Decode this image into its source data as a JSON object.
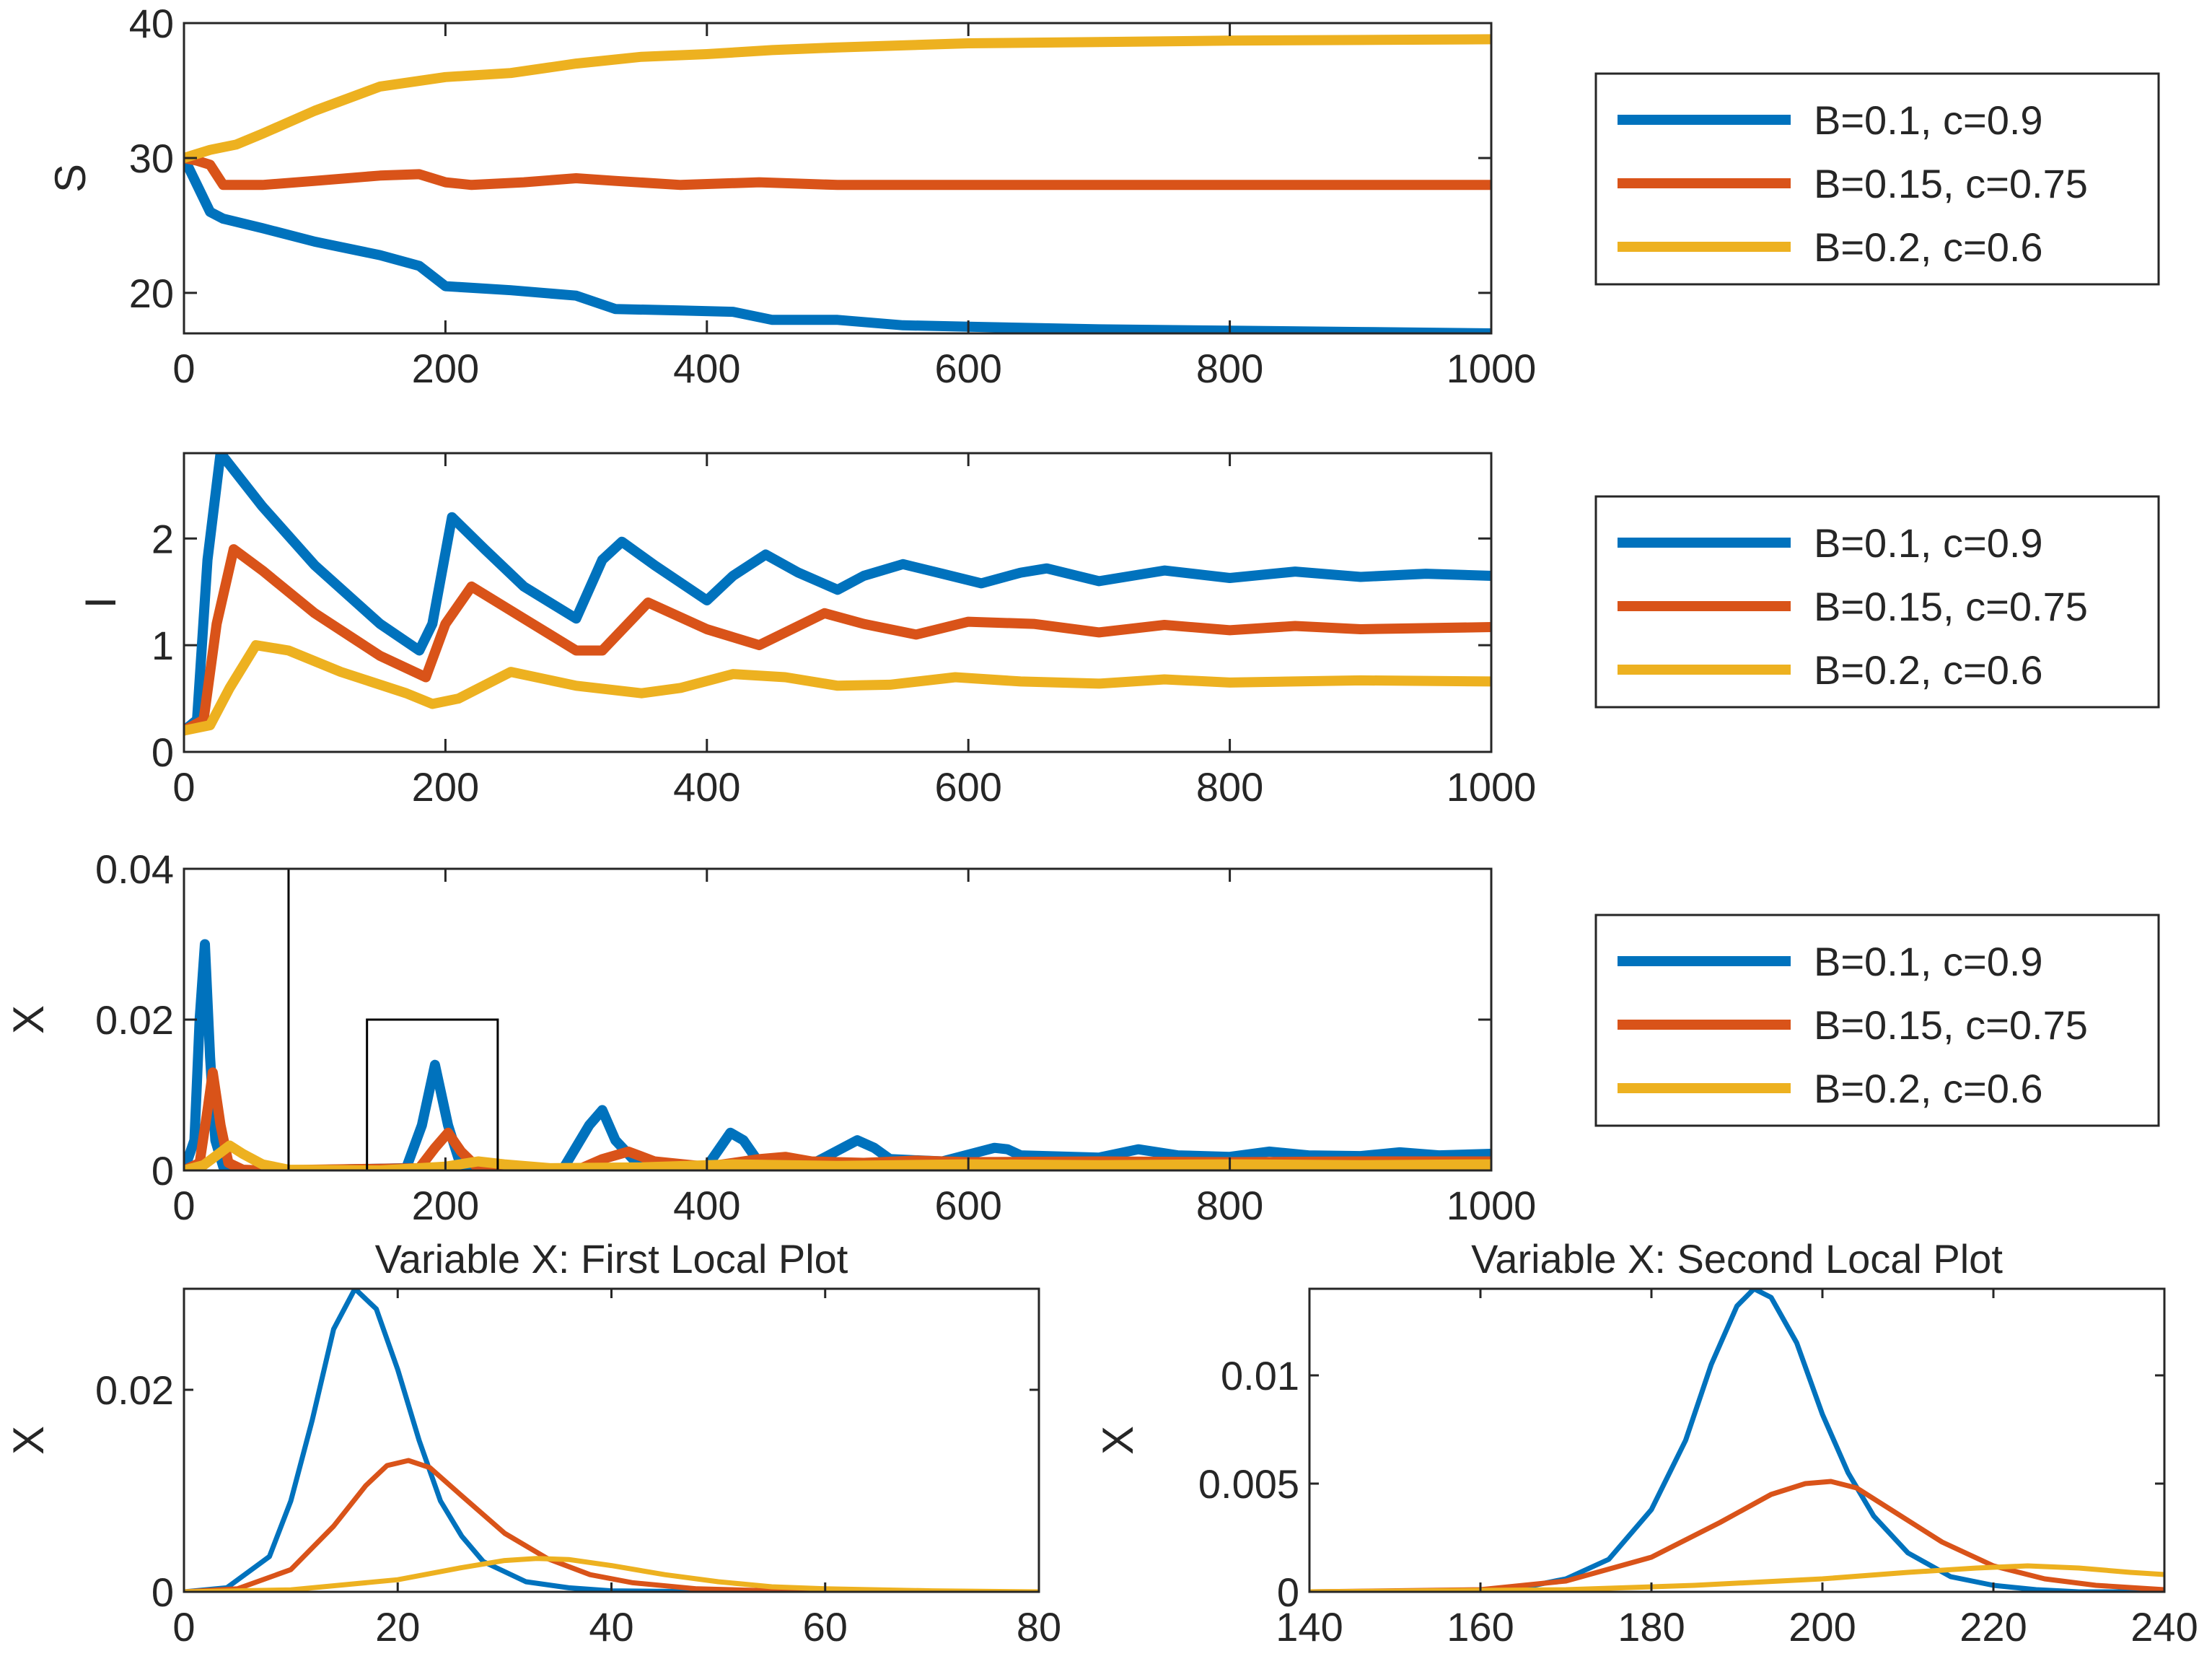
{
  "figure": {
    "colors": {
      "blue": "#0072BD",
      "orange": "#D95319",
      "yellow": "#EDB120",
      "axis": "#262626"
    }
  },
  "chart_data": [
    {
      "id": "S",
      "type": "line",
      "title": "",
      "xlabel": "",
      "ylabel": "S",
      "xlim": [
        0,
        1000
      ],
      "ylim": [
        17,
        40
      ],
      "xticks": [
        0,
        200,
        400,
        600,
        800,
        1000
      ],
      "yticks": [
        20,
        30,
        40
      ],
      "grid": false,
      "legend_position": "right",
      "series": [
        {
          "name": "B=0.1, c=0.9",
          "color": "#0072BD",
          "x": [
            0,
            10,
            20,
            30,
            60,
            100,
            150,
            180,
            200,
            250,
            300,
            330,
            380,
            420,
            450,
            500,
            550,
            600,
            700,
            800,
            900,
            1000
          ],
          "y": [
            30,
            28,
            26,
            25.5,
            24.8,
            23.8,
            22.8,
            22,
            20.5,
            20.2,
            19.8,
            18.8,
            18.7,
            18.6,
            18,
            18,
            17.6,
            17.5,
            17.3,
            17.2,
            17.1,
            17
          ]
        },
        {
          "name": "B=0.15, c=0.75",
          "color": "#D95319",
          "x": [
            0,
            10,
            20,
            30,
            60,
            100,
            150,
            180,
            200,
            220,
            260,
            300,
            330,
            380,
            440,
            500,
            600,
            700,
            800,
            900,
            1000
          ],
          "y": [
            30,
            29.8,
            29.5,
            28,
            28,
            28.3,
            28.7,
            28.8,
            28.2,
            28,
            28.2,
            28.5,
            28.3,
            28,
            28.2,
            28,
            28,
            28,
            28,
            28,
            28
          ]
        },
        {
          "name": "B=0.2, c=0.6",
          "color": "#EDB120",
          "x": [
            0,
            10,
            20,
            40,
            60,
            100,
            150,
            200,
            250,
            300,
            350,
            400,
            450,
            500,
            600,
            700,
            800,
            900,
            1000
          ],
          "y": [
            30,
            30.3,
            30.6,
            31,
            31.8,
            33.5,
            35.3,
            36,
            36.3,
            37,
            37.5,
            37.7,
            38,
            38.2,
            38.5,
            38.6,
            38.7,
            38.75,
            38.8
          ]
        }
      ]
    },
    {
      "id": "I",
      "type": "line",
      "title": "",
      "xlabel": "",
      "ylabel": "I",
      "xlim": [
        0,
        1000
      ],
      "ylim": [
        0,
        2.8
      ],
      "xticks": [
        0,
        200,
        400,
        600,
        800,
        1000
      ],
      "yticks": [
        0,
        1,
        2
      ],
      "grid": false,
      "legend_position": "right",
      "series": [
        {
          "name": "B=0.1, c=0.9",
          "color": "#0072BD",
          "x": [
            0,
            10,
            18,
            28,
            60,
            100,
            150,
            180,
            190,
            205,
            230,
            260,
            300,
            320,
            335,
            360,
            400,
            420,
            445,
            470,
            500,
            520,
            550,
            580,
            610,
            640,
            660,
            700,
            750,
            800,
            850,
            900,
            950,
            1000
          ],
          "y": [
            0.2,
            0.3,
            1.8,
            2.8,
            2.3,
            1.75,
            1.2,
            0.95,
            1.2,
            2.2,
            1.9,
            1.55,
            1.25,
            1.8,
            1.97,
            1.75,
            1.42,
            1.65,
            1.85,
            1.68,
            1.52,
            1.65,
            1.76,
            1.67,
            1.58,
            1.68,
            1.72,
            1.6,
            1.7,
            1.63,
            1.69,
            1.64,
            1.67,
            1.65
          ]
        },
        {
          "name": "B=0.15, c=0.75",
          "color": "#D95319",
          "x": [
            0,
            15,
            25,
            38,
            60,
            100,
            150,
            185,
            200,
            220,
            260,
            300,
            320,
            355,
            400,
            440,
            490,
            520,
            560,
            600,
            650,
            700,
            750,
            800,
            850,
            900,
            1000
          ],
          "y": [
            0.2,
            0.3,
            1.2,
            1.9,
            1.7,
            1.3,
            0.9,
            0.7,
            1.2,
            1.55,
            1.25,
            0.95,
            0.95,
            1.4,
            1.15,
            1.0,
            1.3,
            1.2,
            1.1,
            1.22,
            1.2,
            1.12,
            1.19,
            1.14,
            1.18,
            1.15,
            1.17
          ]
        },
        {
          "name": "B=0.2, c=0.6",
          "color": "#EDB120",
          "x": [
            0,
            20,
            35,
            55,
            80,
            120,
            170,
            190,
            210,
            250,
            300,
            350,
            380,
            420,
            460,
            500,
            540,
            590,
            640,
            700,
            750,
            800,
            900,
            1000
          ],
          "y": [
            0.2,
            0.25,
            0.6,
            1.0,
            0.95,
            0.75,
            0.55,
            0.45,
            0.5,
            0.75,
            0.62,
            0.55,
            0.6,
            0.73,
            0.7,
            0.62,
            0.63,
            0.7,
            0.66,
            0.64,
            0.68,
            0.65,
            0.67,
            0.66
          ]
        }
      ]
    },
    {
      "id": "X",
      "type": "line",
      "title": "",
      "xlabel": "",
      "ylabel": "X",
      "xlim": [
        0,
        1000
      ],
      "ylim": [
        0,
        0.04
      ],
      "xticks": [
        0,
        200,
        400,
        600,
        800,
        1000
      ],
      "yticks": [
        0,
        0.02,
        0.04
      ],
      "ytick_labels": [
        "0",
        "0.02",
        "0.04"
      ],
      "grid": false,
      "legend_position": "right",
      "zoom_boxes": [
        {
          "x": [
            0,
            80
          ],
          "y": [
            0,
            0.04
          ]
        },
        {
          "x": [
            140,
            240
          ],
          "y": [
            0,
            0.02
          ]
        }
      ],
      "series": [
        {
          "name": "B=0.1, c=0.9",
          "color": "#0072BD",
          "x": [
            0,
            8,
            12,
            16,
            20,
            24,
            30,
            40,
            80,
            170,
            182,
            192,
            202,
            212,
            230,
            290,
            310,
            320,
            330,
            350,
            400,
            418,
            428,
            440,
            480,
            515,
            528,
            540,
            580,
            620,
            630,
            640,
            700,
            730,
            760,
            800,
            830,
            860,
            900,
            930,
            960,
            1000
          ],
          "y": [
            0,
            0.004,
            0.02,
            0.03,
            0.015,
            0.004,
            0.0005,
            0,
            0,
            0.0003,
            0.006,
            0.014,
            0.006,
            0.0005,
            0,
            0.0002,
            0.006,
            0.008,
            0.004,
            0.0003,
            0.0005,
            0.005,
            0.004,
            0.001,
            0.0008,
            0.004,
            0.003,
            0.0015,
            0.0012,
            0.003,
            0.0028,
            0.002,
            0.0017,
            0.0028,
            0.002,
            0.0018,
            0.0025,
            0.002,
            0.0019,
            0.0024,
            0.002,
            0.0022
          ]
        },
        {
          "name": "B=0.15, c=0.75",
          "color": "#D95319",
          "x": [
            0,
            12,
            18,
            22,
            28,
            34,
            45,
            60,
            180,
            192,
            202,
            212,
            225,
            300,
            320,
            340,
            360,
            400,
            440,
            460,
            480,
            520,
            560,
            600,
            700,
            800,
            900,
            1000
          ],
          "y": [
            0,
            0.001,
            0.008,
            0.013,
            0.006,
            0.001,
            0.0001,
            0,
            0.0003,
            0.003,
            0.005,
            0.0025,
            0.0003,
            0,
            0.0015,
            0.0025,
            0.0012,
            0.0005,
            0.0015,
            0.0018,
            0.0012,
            0.001,
            0.0013,
            0.0011,
            0.0012,
            0.0011,
            0.0012,
            0.0012
          ]
        },
        {
          "name": "B=0.2, c=0.6",
          "color": "#EDB120",
          "x": [
            0,
            15,
            25,
            35,
            45,
            60,
            80,
            150,
            200,
            225,
            245,
            280,
            350,
            420,
            500,
            600,
            700,
            800,
            900,
            1000
          ],
          "y": [
            0,
            0.0007,
            0.002,
            0.0033,
            0.0022,
            0.0008,
            0.0001,
            0,
            0.0005,
            0.0012,
            0.0008,
            0.0003,
            0.0004,
            0.0008,
            0.0006,
            0.0008,
            0.0007,
            0.0008,
            0.0007,
            0.0008
          ]
        }
      ]
    },
    {
      "id": "X-local-1",
      "type": "line",
      "title": "Variable X: First Local Plot",
      "xlabel": "",
      "ylabel": "X",
      "xlim": [
        0,
        80
      ],
      "ylim": [
        0,
        0.03
      ],
      "xticks": [
        0,
        20,
        40,
        60,
        80
      ],
      "yticks": [
        0,
        0.02
      ],
      "ytick_labels": [
        "0",
        "0.02"
      ],
      "grid": false,
      "series": [
        {
          "name": "B=0.1, c=0.9",
          "color": "#0072BD",
          "x": [
            0,
            4,
            8,
            10,
            12,
            14,
            16,
            18,
            20,
            22,
            24,
            26,
            28,
            32,
            36,
            40,
            50,
            60,
            80
          ],
          "y": [
            0,
            0.0004,
            0.0035,
            0.009,
            0.017,
            0.026,
            0.03,
            0.028,
            0.022,
            0.015,
            0.009,
            0.0055,
            0.003,
            0.001,
            0.0004,
            0.0001,
            0,
            0,
            0
          ]
        },
        {
          "name": "B=0.15, c=0.75",
          "color": "#D95319",
          "x": [
            0,
            5,
            10,
            14,
            17,
            19,
            21,
            23,
            26,
            30,
            34,
            38,
            42,
            48,
            55,
            65,
            80
          ],
          "y": [
            0,
            0.0003,
            0.0022,
            0.0065,
            0.0105,
            0.0125,
            0.013,
            0.0123,
            0.0095,
            0.0058,
            0.0033,
            0.0017,
            0.0009,
            0.0003,
            0.0001,
            0,
            0
          ]
        },
        {
          "name": "B=0.2, c=0.6",
          "color": "#EDB120",
          "x": [
            0,
            10,
            20,
            26,
            30,
            33,
            36,
            40,
            45,
            50,
            55,
            60,
            70,
            80
          ],
          "y": [
            0,
            0.0002,
            0.0012,
            0.0024,
            0.0031,
            0.0033,
            0.0032,
            0.0026,
            0.0017,
            0.001,
            0.0005,
            0.0003,
            0.0001,
            0
          ]
        }
      ]
    },
    {
      "id": "X-local-2",
      "type": "line",
      "title": "Variable X: Second Local Plot",
      "xlabel": "",
      "ylabel": "X",
      "xlim": [
        140,
        240
      ],
      "ylim": [
        0,
        0.014
      ],
      "xticks": [
        140,
        160,
        180,
        200,
        220,
        240
      ],
      "yticks": [
        0,
        0.005,
        0.01
      ],
      "ytick_labels": [
        "0",
        "0.005",
        "0.01"
      ],
      "grid": false,
      "series": [
        {
          "name": "B=0.1, c=0.9",
          "color": "#0072BD",
          "x": [
            140,
            160,
            165,
            170,
            175,
            180,
            184,
            187,
            190,
            192,
            194,
            197,
            200,
            203,
            206,
            210,
            215,
            220,
            225,
            230,
            240
          ],
          "y": [
            0,
            5e-05,
            0.0002,
            0.0006,
            0.0015,
            0.0038,
            0.007,
            0.0105,
            0.0132,
            0.014,
            0.0136,
            0.0115,
            0.0082,
            0.0055,
            0.0035,
            0.0018,
            0.0007,
            0.0003,
            0.0001,
            0,
            0
          ]
        },
        {
          "name": "B=0.15, c=0.75",
          "color": "#D95319",
          "x": [
            140,
            160,
            170,
            180,
            188,
            194,
            198,
            201,
            204,
            208,
            214,
            220,
            226,
            232,
            240
          ],
          "y": [
            0,
            0.0001,
            0.0005,
            0.0016,
            0.0032,
            0.0045,
            0.005,
            0.0051,
            0.0048,
            0.0038,
            0.0023,
            0.0012,
            0.0006,
            0.0003,
            0.0001
          ]
        },
        {
          "name": "B=0.2, c=0.6",
          "color": "#EDB120",
          "x": [
            140,
            170,
            185,
            200,
            210,
            218,
            224,
            230,
            236,
            240
          ],
          "y": [
            0,
            0.0001,
            0.0003,
            0.0006,
            0.0009,
            0.0011,
            0.0012,
            0.0011,
            0.0009,
            0.0008
          ]
        }
      ]
    }
  ]
}
